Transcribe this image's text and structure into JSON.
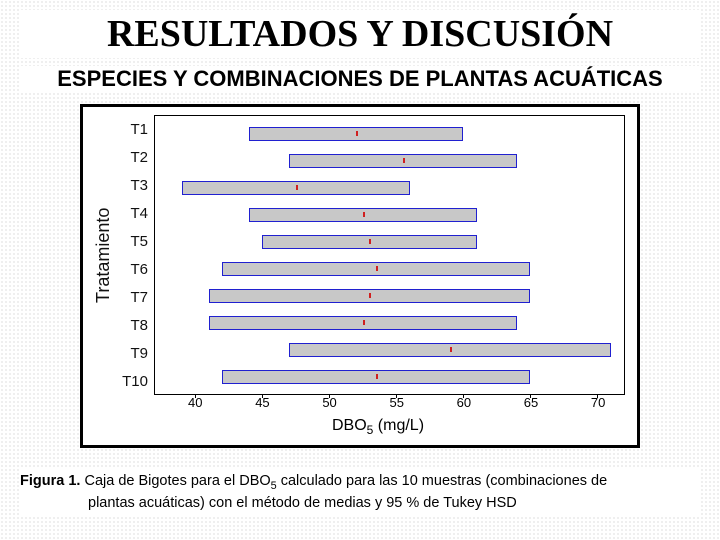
{
  "title": "RESULTADOS Y DISCUSIÓN",
  "subtitle": "ESPECIES Y COMBINACIONES DE PLANTAS ACUÁTICAS",
  "chart": {
    "type": "boxplot-horizontal",
    "ylabel": "Tratamiento",
    "xlabel": "DBO5 (mg/L)",
    "categories": [
      "T1",
      "T2",
      "T3",
      "T4",
      "T5",
      "T6",
      "T7",
      "T8",
      "T9",
      "T10"
    ],
    "xlim": [
      37,
      72
    ],
    "xticks": [
      40,
      45,
      50,
      55,
      60,
      65,
      70
    ],
    "box_fill": "#c8c8c8",
    "box_border": "#2020d0",
    "median_color": "#d02020",
    "background": "#ffffff",
    "frame_color": "#000000",
    "xlabel_fontsize": 16,
    "ylabel_fontsize": 18,
    "tick_fontsize": 13,
    "boxes": [
      {
        "low": 44,
        "high": 60,
        "median": 52
      },
      {
        "low": 47,
        "high": 64,
        "median": 55.5
      },
      {
        "low": 39,
        "high": 56,
        "median": 47.5
      },
      {
        "low": 44,
        "high": 61,
        "median": 52.5
      },
      {
        "low": 45,
        "high": 61,
        "median": 53
      },
      {
        "low": 42,
        "high": 65,
        "median": 53.5
      },
      {
        "low": 41,
        "high": 65,
        "median": 53
      },
      {
        "low": 41,
        "high": 64,
        "median": 52.5
      },
      {
        "low": 47,
        "high": 71,
        "median": 59
      },
      {
        "low": 42,
        "high": 65,
        "median": 53.5
      }
    ]
  },
  "caption": {
    "figure_label": "Figura 1.",
    "line1": " Caja de Bigotes para el DBO",
    "sub": "5",
    "line1b": " calculado para las 10 muestras (combinaciones de",
    "line2": "plantas acuáticas) con el método de medias y 95 % de Tukey HSD"
  }
}
